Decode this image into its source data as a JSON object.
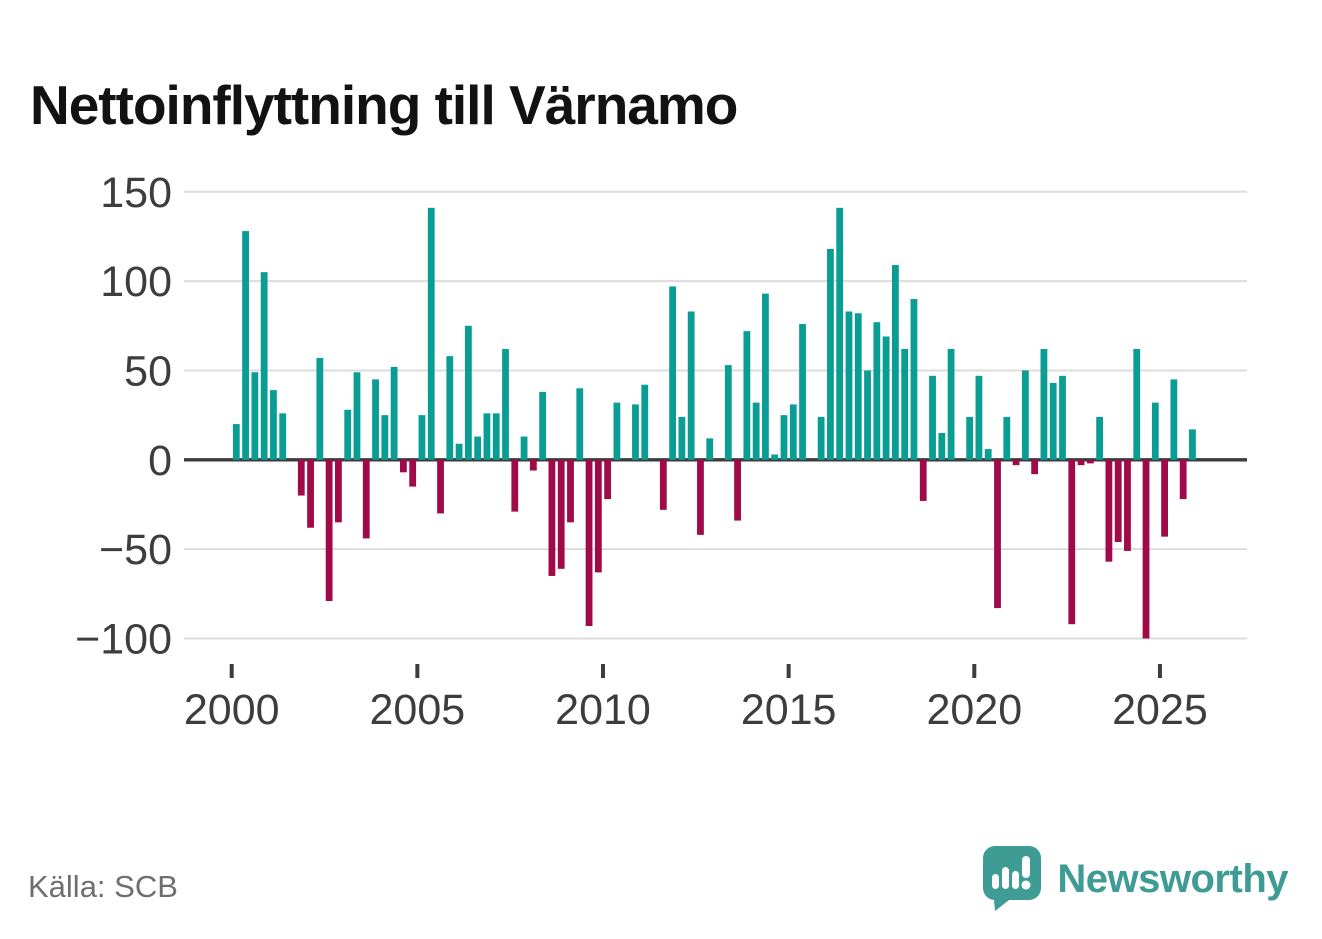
{
  "title": "Nettoinflyttning till Värnamo",
  "source": "Källa: SCB",
  "branding": {
    "logo_text": "Newsworthy",
    "logo_icon": "speech-bubble-bar-chart-icon"
  },
  "colors": {
    "positive_bar": "#0a9d94",
    "negative_bar": "#a00a48",
    "grid_line": "#dcdcdc",
    "zero_line": "#3c3c3c",
    "axis_text": "#3d3d3d",
    "title_text": "#121212",
    "source_text": "#6f6f6f",
    "brand_teal": "#3f9c95"
  },
  "chart_data": {
    "type": "bar",
    "title": "Nettoinflyttning till Värnamo",
    "xlabel": "",
    "ylabel": "",
    "grid": "horizontal gridlines only",
    "legend": "none",
    "period": "quarterly, 2000 Q1 – 2025 Q4",
    "x_tick_labels": [
      "2000",
      "2005",
      "2010",
      "2015",
      "2020",
      "2025"
    ],
    "x_tick_years": [
      2000,
      2005,
      2010,
      2015,
      2020,
      2025
    ],
    "y_tick_labels": [
      "150",
      "100",
      "50",
      "0",
      "−50",
      "−100"
    ],
    "y_ticks": [
      150,
      100,
      50,
      0,
      -50,
      -100
    ],
    "ylim": [
      -115,
      160
    ],
    "series": [
      {
        "name": "Nettoinflyttning",
        "values": [
          20,
          128,
          49,
          105,
          39,
          26,
          0,
          -20,
          -38,
          57,
          -79,
          -35,
          28,
          49,
          -44,
          45,
          25,
          52,
          -7,
          -15,
          25,
          141,
          -30,
          58,
          9,
          75,
          13,
          26,
          26,
          62,
          -29,
          13,
          -6,
          38,
          -65,
          -61,
          -35,
          40,
          -93,
          -63,
          -22,
          32,
          0,
          31,
          42,
          0,
          -28,
          97,
          24,
          83,
          -42,
          12,
          0,
          53,
          -34,
          72,
          32,
          93,
          3,
          25,
          31,
          76,
          0,
          24,
          118,
          141,
          83,
          82,
          50,
          77,
          69,
          109,
          62,
          90,
          -23,
          47,
          15,
          62,
          0,
          24,
          47,
          6,
          -83,
          24,
          -3,
          50,
          -8,
          62,
          43,
          47,
          -92,
          -3,
          -2,
          24,
          -57,
          -46,
          -51,
          62,
          -100,
          32,
          -43,
          45,
          -22,
          17
        ]
      }
    ]
  }
}
